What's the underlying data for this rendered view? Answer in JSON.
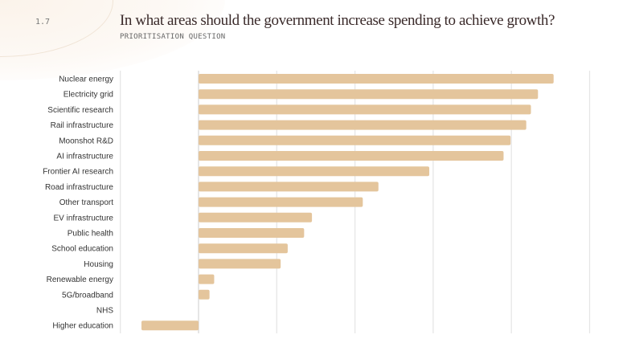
{
  "header": {
    "number": "1.7",
    "title": "In what areas should the government increase spending to achieve growth?",
    "subtitle": "PRIORITISATION QUESTION"
  },
  "chart_data": {
    "type": "bar",
    "orientation": "horizontal",
    "title": "In what areas should the government increase spending to achieve growth?",
    "subtitle": "PRIORITISATION QUESTION",
    "xlabel": "",
    "ylabel": "",
    "xlim": [
      -1,
      5
    ],
    "grid": true,
    "bar_color": "#e4c59c",
    "categories": [
      "Nuclear energy",
      "Electricity grid",
      "Scientific research",
      "Rail infrastructure",
      "Moonshot R&D",
      "AI infrastructure",
      "Frontier AI research",
      "Road infrastructure",
      "Other transport",
      "EV infrastructure",
      "Public health",
      "School education",
      "Housing",
      "Renewable energy",
      "5G/broadband",
      "NHS",
      "Higher education"
    ],
    "values": [
      4.54,
      4.34,
      4.25,
      4.19,
      3.99,
      3.9,
      2.95,
      2.3,
      2.1,
      1.45,
      1.35,
      1.14,
      1.05,
      0.2,
      0.14,
      0,
      -0.73
    ]
  }
}
